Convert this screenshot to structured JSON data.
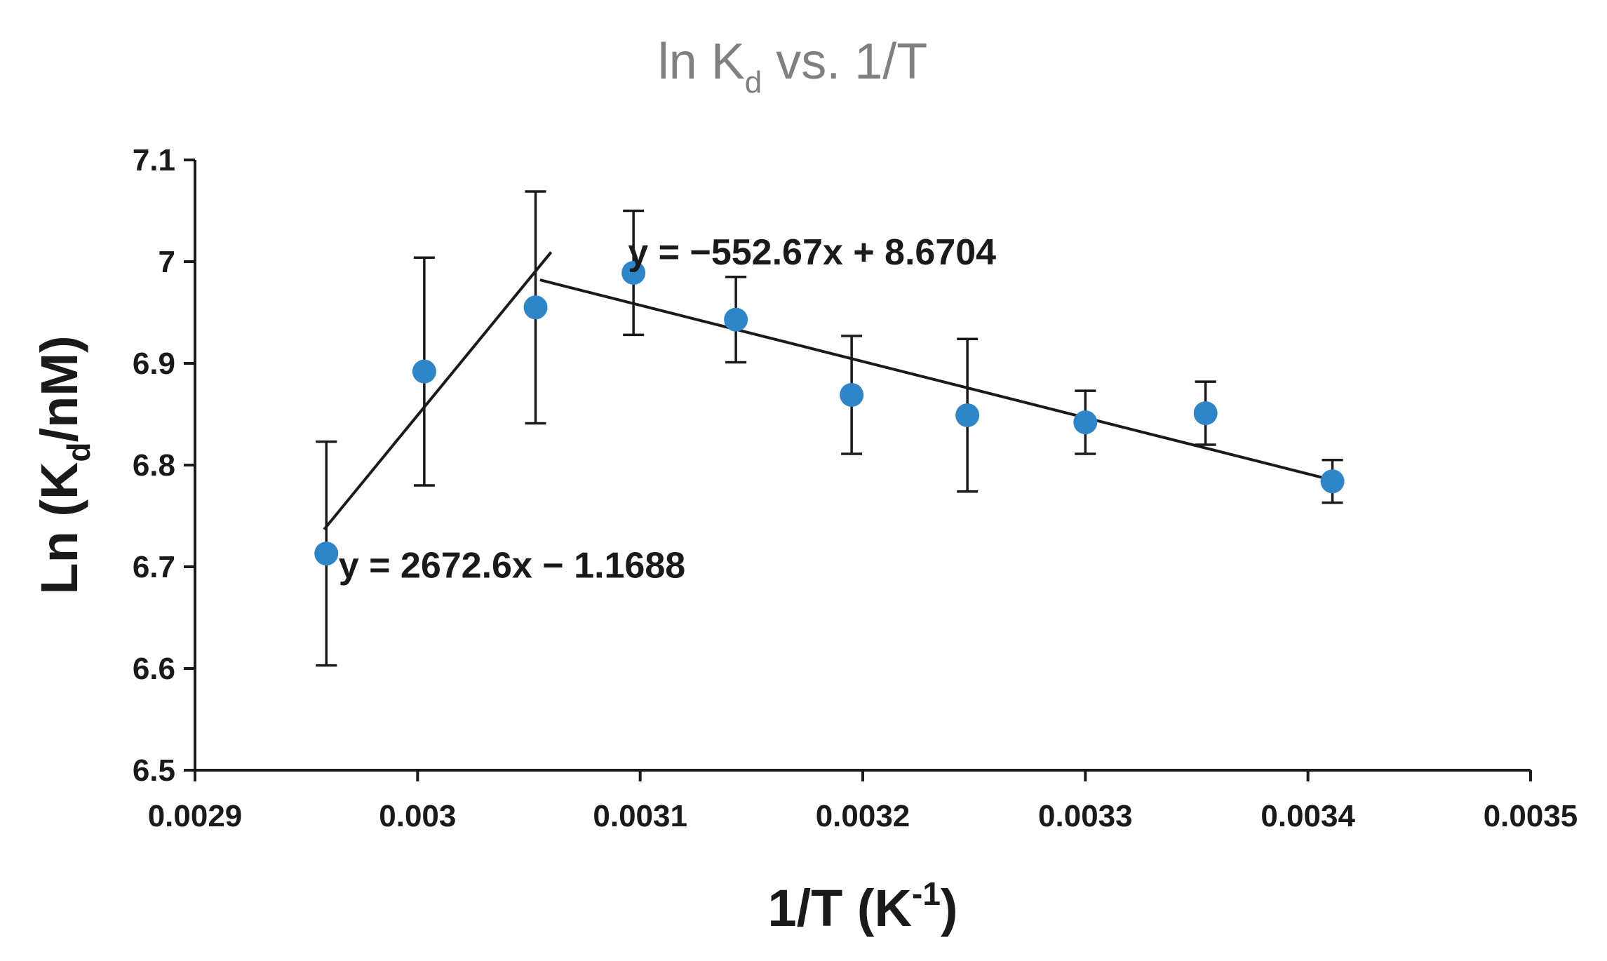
{
  "chart_data": {
    "type": "scatter",
    "title": {
      "main": "ln K",
      "sub": "d",
      "rest": " vs. 1/T"
    },
    "xlabel": {
      "main": "1/T (K",
      "sup": "-1",
      "end": ")"
    },
    "ylabel": {
      "main": "Ln (K",
      "sub": "d",
      "end": "/nM)"
    },
    "xlim": [
      0.0029,
      0.0035
    ],
    "ylim": [
      6.5,
      7.1
    ],
    "x_ticks": [
      0.0029,
      0.003,
      0.0031,
      0.0032,
      0.0033,
      0.0034,
      0.0035
    ],
    "x_tick_labels": [
      "0.0029",
      "0.003",
      "0.0031",
      "0.0032",
      "0.0033",
      "0.0034",
      "0.0035"
    ],
    "y_ticks": [
      6.5,
      6.6,
      6.7,
      6.8,
      6.9,
      7.0,
      7.1
    ],
    "y_tick_labels": [
      "6.5",
      "6.6",
      "6.7",
      "6.8",
      "6.9",
      "7",
      "7.1"
    ],
    "grid": false,
    "legend": "none",
    "series": [
      {
        "name": "ln Kd",
        "color": "#2e86c9",
        "x": [
          0.002959,
          0.003003,
          0.003053,
          0.003097,
          0.003143,
          0.003195,
          0.003247,
          0.0033,
          0.003354,
          0.003411
        ],
        "y": [
          6.713,
          6.892,
          6.955,
          6.989,
          6.943,
          6.869,
          6.849,
          6.842,
          6.851,
          6.784
        ],
        "error": [
          0.11,
          0.112,
          0.114,
          0.061,
          0.042,
          0.058,
          0.075,
          0.031,
          0.031,
          0.021
        ]
      }
    ],
    "fits": [
      {
        "name": "fit-high-temperature",
        "slope": 2672.6,
        "intercept": -1.1688,
        "x_range": [
          0.002958,
          0.00306
        ],
        "label": "y = 2672.6x − 1.1688",
        "label_anchor": [
          0.002962,
          6.692
        ]
      },
      {
        "name": "fit-low-temperature",
        "slope": -552.67,
        "intercept": 8.6704,
        "x_range": [
          0.003055,
          0.003414
        ],
        "label": "y = −552.67x + 8.6704",
        "label_anchor": [
          0.003092,
          7.0
        ]
      }
    ],
    "colors": {
      "marker": "#2e86c9",
      "line": "#1a1a1a",
      "axis": "#1a1a1a",
      "title": "#808080"
    }
  }
}
